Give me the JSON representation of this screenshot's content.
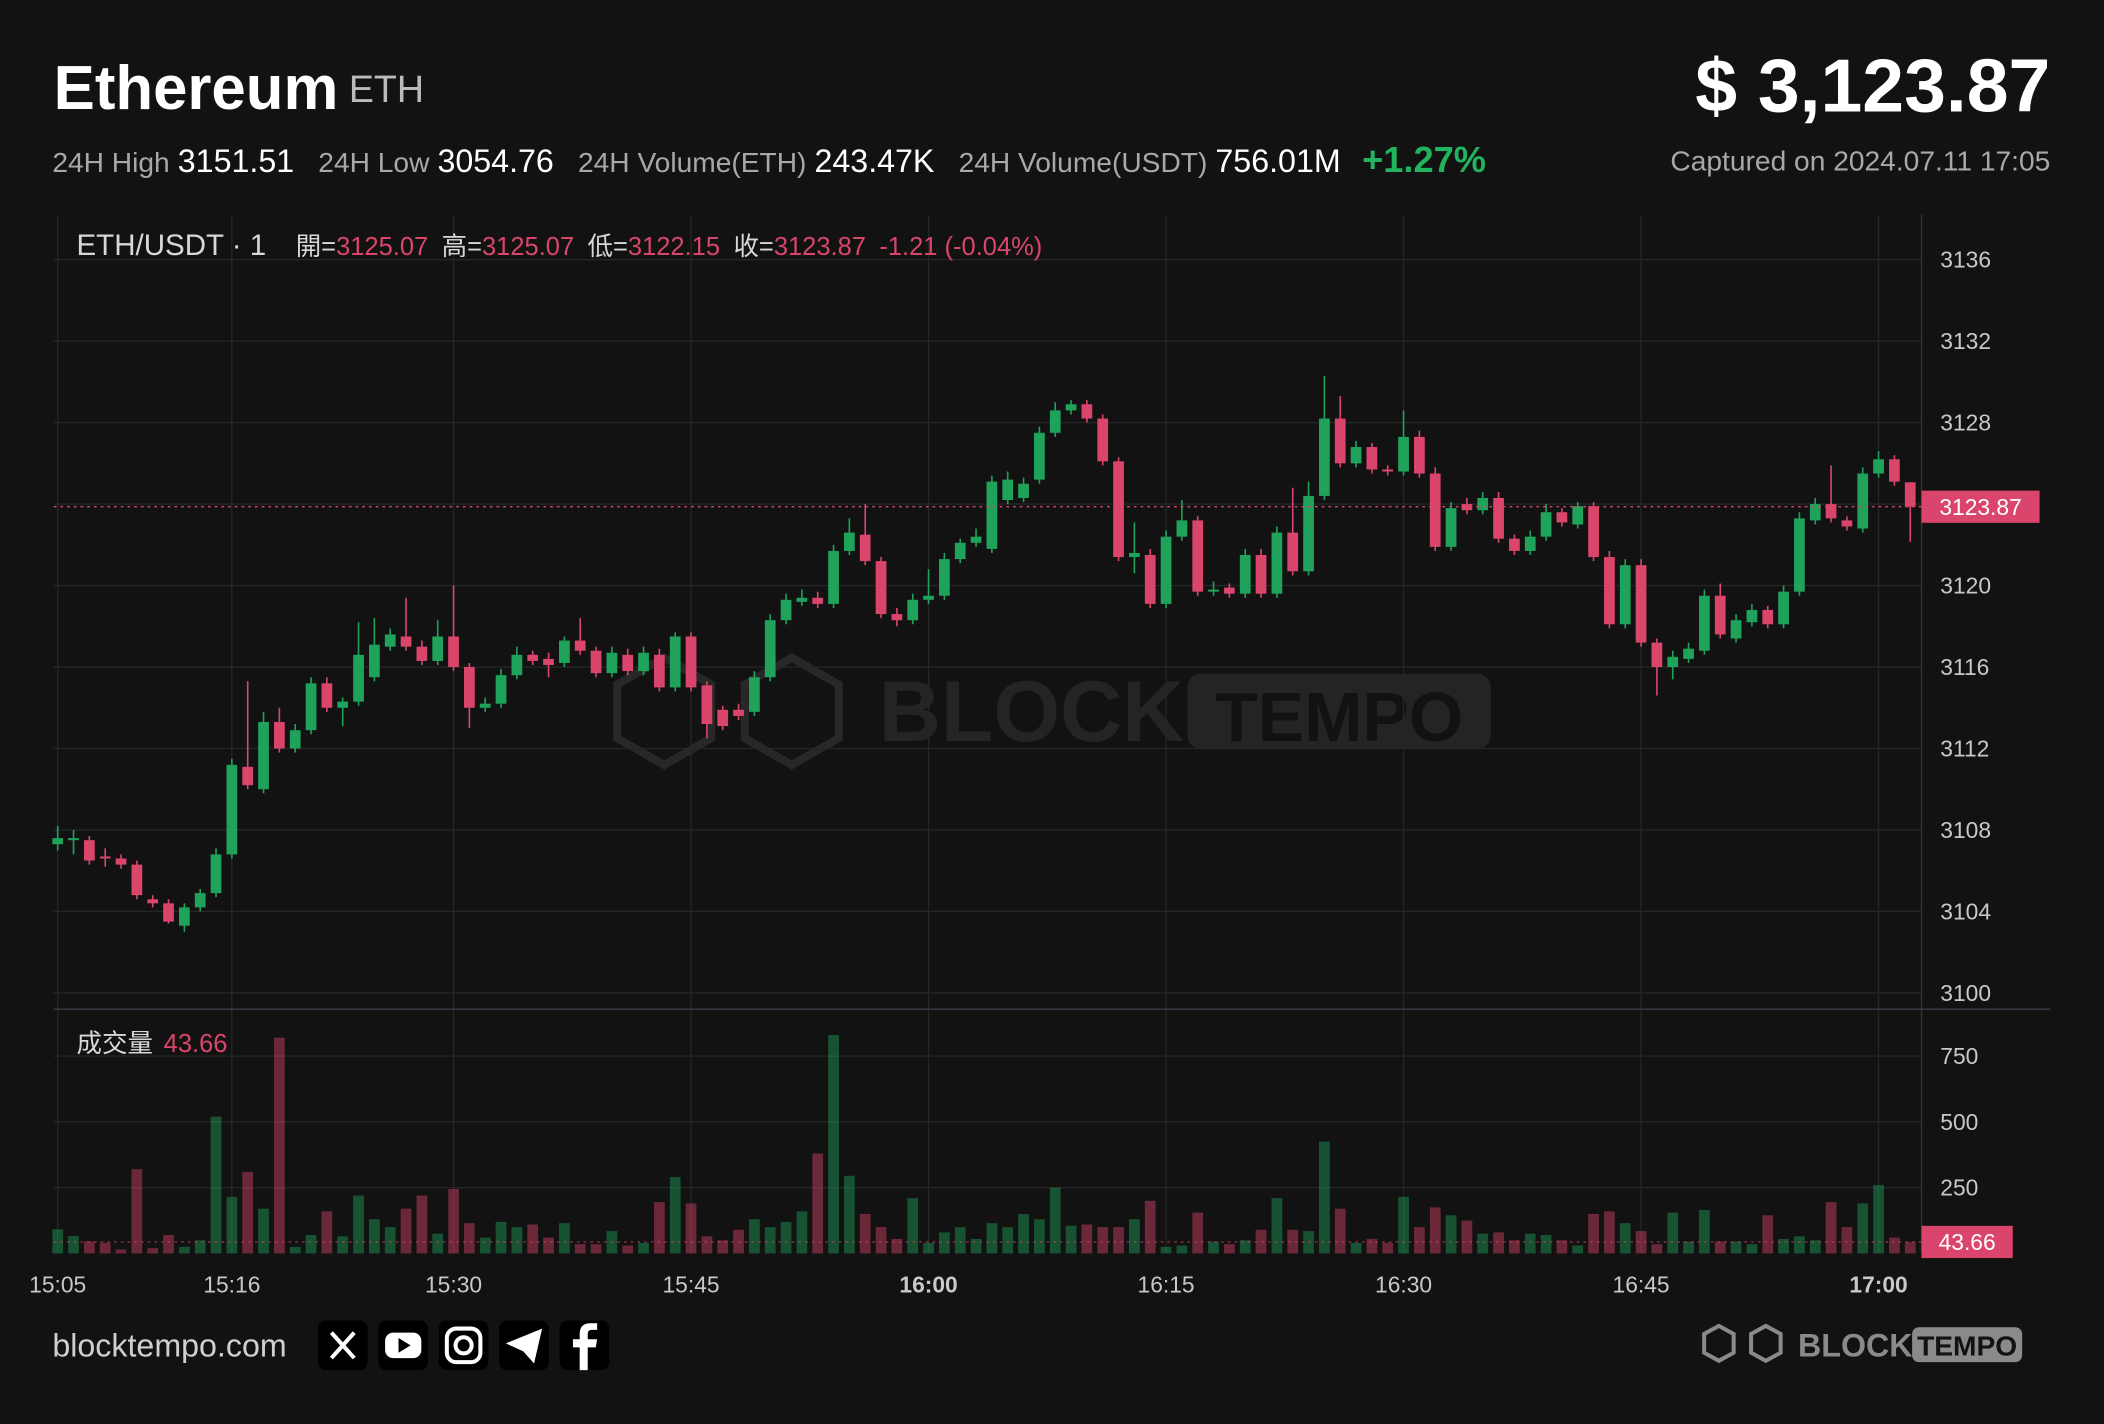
{
  "header": {
    "title": "Ethereum",
    "symbol": "ETH",
    "price": "$ 3,123.87",
    "stats": [
      {
        "label": "24H High",
        "value": "3151.51"
      },
      {
        "label": "24H Low",
        "value": "3054.76"
      },
      {
        "label": "24H Volume(ETH)",
        "value": "243.47K"
      },
      {
        "label": "24H Volume(USDT)",
        "value": "756.01M"
      }
    ],
    "change": "+1.27%",
    "captured": "Captured on 2024.07.11 17:05"
  },
  "chart_data": {
    "type": "candlestick",
    "legend_label": "ETH/USDT · 1",
    "ohlc_labels": [
      "開=",
      "高=",
      "低=",
      "收="
    ],
    "change_label": "-1.21 (-0.04%)",
    "up_color": "#1fa35a",
    "down_color": "#d9456b",
    "grid": true,
    "categories": [
      "15:05",
      "15:06",
      "15:07",
      "15:08",
      "15:09",
      "15:10",
      "15:11",
      "15:12",
      "15:13",
      "15:14",
      "15:15",
      "15:16",
      "15:17",
      "15:18",
      "15:19",
      "15:20",
      "15:21",
      "15:22",
      "15:23",
      "15:24",
      "15:25",
      "15:26",
      "15:27",
      "15:28",
      "15:29",
      "15:30",
      "15:31",
      "15:32",
      "15:33",
      "15:34",
      "15:35",
      "15:36",
      "15:37",
      "15:38",
      "15:39",
      "15:40",
      "15:41",
      "15:42",
      "15:43",
      "15:44",
      "15:45",
      "15:46",
      "15:47",
      "15:48",
      "15:49",
      "15:50",
      "15:51",
      "15:52",
      "15:53",
      "15:54",
      "15:55",
      "15:56",
      "15:57",
      "15:58",
      "15:59",
      "16:00",
      "16:01",
      "16:02",
      "16:03",
      "16:04",
      "16:05",
      "16:06",
      "16:07",
      "16:08",
      "16:09",
      "16:10",
      "16:11",
      "16:12",
      "16:13",
      "16:14",
      "16:15",
      "16:16",
      "16:17",
      "16:18",
      "16:19",
      "16:20",
      "16:21",
      "16:22",
      "16:23",
      "16:24",
      "16:25",
      "16:26",
      "16:27",
      "16:28",
      "16:29",
      "16:30",
      "16:31",
      "16:32",
      "16:33",
      "16:34",
      "16:35",
      "16:36",
      "16:37",
      "16:38",
      "16:39",
      "16:40",
      "16:41",
      "16:42",
      "16:43",
      "16:44",
      "16:45",
      "16:46",
      "16:47",
      "16:48",
      "16:49",
      "16:50",
      "16:51",
      "16:52",
      "16:53",
      "16:54",
      "16:55",
      "16:56",
      "16:57",
      "16:58",
      "16:59",
      "17:00",
      "17:01",
      "17:02"
    ],
    "xticks": [
      "15:05",
      "15:16",
      "15:30",
      "15:45",
      "16:00",
      "16:15",
      "16:30",
      "16:45",
      "17:00"
    ],
    "open": [
      3107.3,
      3107.5,
      3107.5,
      3106.7,
      3106.6,
      3106.3,
      3104.6,
      3104.4,
      3103.3,
      3104.2,
      3104.9,
      3106.8,
      3111.1,
      3110.0,
      3113.3,
      3112.0,
      3112.9,
      3115.2,
      3114.0,
      3114.3,
      3115.5,
      3117.0,
      3117.5,
      3117.0,
      3116.3,
      3117.5,
      3116.0,
      3114.0,
      3114.2,
      3115.6,
      3116.6,
      3116.4,
      3116.2,
      3117.3,
      3116.8,
      3115.7,
      3116.6,
      3115.8,
      3116.6,
      3115.0,
      3117.5,
      3115.1,
      3113.9,
      3113.9,
      3113.8,
      3115.5,
      3118.3,
      3119.2,
      3119.4,
      3119.1,
      3121.7,
      3122.5,
      3121.2,
      3118.6,
      3118.3,
      3119.3,
      3119.5,
      3121.3,
      3122.1,
      3121.8,
      3124.2,
      3124.3,
      3125.2,
      3127.5,
      3128.6,
      3128.9,
      3128.2,
      3126.1,
      3121.4,
      3121.5,
      3119.1,
      3122.4,
      3123.2,
      3119.7,
      3119.9,
      3119.6,
      3121.5,
      3119.6,
      3122.6,
      3120.7,
      3124.4,
      3128.2,
      3126.0,
      3126.8,
      3125.7,
      3125.6,
      3127.3,
      3125.5,
      3121.9,
      3124.0,
      3123.7,
      3124.3,
      3122.3,
      3121.7,
      3122.4,
      3123.6,
      3123.0,
      3123.9,
      3121.4,
      3118.1,
      3121.0,
      3117.2,
      3116.0,
      3116.4,
      3116.8,
      3119.5,
      3117.4,
      3118.2,
      3118.8,
      3118.1,
      3119.7,
      3123.2,
      3124.0,
      3123.2,
      3122.8,
      3125.5,
      3126.2,
      3125.07
    ],
    "high": [
      3108.2,
      3108.0,
      3107.7,
      3107.1,
      3106.8,
      3106.5,
      3104.8,
      3104.6,
      3104.4,
      3105.1,
      3107.1,
      3111.5,
      3115.3,
      3113.8,
      3114.0,
      3113.2,
      3115.5,
      3115.5,
      3114.5,
      3118.2,
      3118.4,
      3117.9,
      3119.4,
      3117.3,
      3118.3,
      3120.0,
      3116.2,
      3114.5,
      3115.9,
      3117.0,
      3116.8,
      3116.7,
      3117.5,
      3118.4,
      3117.0,
      3117.0,
      3116.9,
      3117.0,
      3116.9,
      3117.7,
      3117.7,
      3115.3,
      3114.1,
      3114.2,
      3115.8,
      3118.6,
      3119.6,
      3119.8,
      3119.7,
      3122.0,
      3123.3,
      3124.0,
      3121.4,
      3118.9,
      3119.6,
      3120.8,
      3121.6,
      3122.3,
      3122.8,
      3125.4,
      3125.6,
      3125.3,
      3127.8,
      3129.0,
      3129.1,
      3129.1,
      3128.4,
      3126.3,
      3123.1,
      3121.8,
      3122.7,
      3124.2,
      3123.4,
      3120.2,
      3120.1,
      3121.8,
      3121.8,
      3122.9,
      3124.8,
      3125.1,
      3130.3,
      3129.3,
      3127.1,
      3127.0,
      3125.9,
      3128.6,
      3127.6,
      3125.8,
      3124.1,
      3124.3,
      3124.6,
      3124.6,
      3122.5,
      3122.7,
      3124.0,
      3123.8,
      3124.1,
      3124.1,
      3121.7,
      3121.3,
      3121.3,
      3117.4,
      3116.8,
      3117.2,
      3119.8,
      3120.1,
      3118.6,
      3119.1,
      3119.0,
      3120.0,
      3123.6,
      3124.3,
      3125.9,
      3123.4,
      3125.8,
      3126.6,
      3126.4,
      3125.07
    ],
    "low": [
      3107.0,
      3106.8,
      3106.3,
      3106.2,
      3106.1,
      3104.6,
      3104.2,
      3103.4,
      3103.0,
      3104.0,
      3104.7,
      3106.6,
      3110.0,
      3109.8,
      3111.8,
      3111.8,
      3112.7,
      3113.8,
      3113.1,
      3114.1,
      3115.3,
      3116.8,
      3116.8,
      3116.1,
      3116.1,
      3115.8,
      3113.0,
      3113.8,
      3114.0,
      3115.4,
      3116.1,
      3115.5,
      3116.0,
      3116.6,
      3115.5,
      3115.5,
      3115.6,
      3115.6,
      3114.8,
      3114.8,
      3114.8,
      3112.5,
      3112.9,
      3113.4,
      3113.6,
      3115.3,
      3118.1,
      3119.0,
      3118.9,
      3118.9,
      3121.5,
      3121.0,
      3118.4,
      3118.0,
      3118.1,
      3119.1,
      3119.3,
      3121.1,
      3121.9,
      3121.6,
      3124.0,
      3124.1,
      3125.0,
      3127.3,
      3128.4,
      3128.0,
      3125.9,
      3121.2,
      3120.6,
      3118.9,
      3118.9,
      3122.2,
      3119.5,
      3119.5,
      3119.4,
      3119.4,
      3119.4,
      3119.4,
      3120.5,
      3120.5,
      3124.2,
      3125.8,
      3125.8,
      3125.5,
      3125.4,
      3125.4,
      3125.3,
      3121.7,
      3121.7,
      3123.5,
      3123.5,
      3122.1,
      3121.5,
      3121.5,
      3122.2,
      3122.9,
      3122.8,
      3121.2,
      3117.9,
      3117.9,
      3117.0,
      3114.6,
      3115.4,
      3116.2,
      3116.6,
      3117.4,
      3117.2,
      3118.0,
      3117.9,
      3117.9,
      3119.5,
      3123.0,
      3123.1,
      3122.7,
      3122.6,
      3125.3,
      3124.9,
      3122.15
    ],
    "close": [
      3107.6,
      3107.6,
      3106.5,
      3106.6,
      3106.3,
      3104.8,
      3104.4,
      3103.5,
      3104.2,
      3104.9,
      3106.8,
      3111.2,
      3110.2,
      3113.3,
      3112.0,
      3112.9,
      3115.2,
      3114.0,
      3114.3,
      3116.6,
      3117.1,
      3117.6,
      3117.0,
      3116.3,
      3117.5,
      3116.0,
      3114.0,
      3114.2,
      3115.6,
      3116.6,
      3116.3,
      3116.1,
      3117.3,
      3116.8,
      3115.7,
      3116.7,
      3115.8,
      3116.7,
      3115.0,
      3117.5,
      3115.0,
      3113.2,
      3113.1,
      3113.6,
      3115.5,
      3118.3,
      3119.3,
      3119.4,
      3119.1,
      3121.7,
      3122.6,
      3121.2,
      3118.6,
      3118.3,
      3119.3,
      3119.5,
      3121.3,
      3122.1,
      3122.4,
      3125.1,
      3125.2,
      3125.0,
      3127.5,
      3128.6,
      3128.9,
      3128.2,
      3126.1,
      3121.4,
      3121.6,
      3119.1,
      3122.4,
      3123.2,
      3119.7,
      3119.8,
      3119.6,
      3121.5,
      3119.6,
      3122.6,
      3120.7,
      3124.4,
      3128.2,
      3126.0,
      3126.8,
      3125.7,
      3125.6,
      3127.3,
      3125.5,
      3121.9,
      3123.8,
      3123.7,
      3124.3,
      3122.3,
      3121.7,
      3122.4,
      3123.6,
      3123.1,
      3123.9,
      3121.4,
      3118.1,
      3121.0,
      3117.2,
      3116.0,
      3116.5,
      3116.9,
      3119.5,
      3117.6,
      3118.3,
      3118.8,
      3118.1,
      3119.7,
      3123.3,
      3124.0,
      3123.3,
      3122.9,
      3125.5,
      3126.2,
      3125.1,
      3123.87
    ],
    "ylim": [
      3099.2,
      3138.2
    ],
    "yticks": [
      3100,
      3104,
      3108,
      3112,
      3116,
      3120,
      3124,
      3128,
      3132,
      3136
    ],
    "volume": {
      "label": "成交量",
      "values": [
        92,
        66,
        46,
        40,
        15,
        320,
        20,
        70,
        25,
        50,
        520,
        215,
        310,
        170,
        820,
        25,
        70,
        160,
        65,
        220,
        130,
        100,
        170,
        220,
        75,
        245,
        115,
        60,
        120,
        100,
        110,
        60,
        115,
        35,
        35,
        85,
        30,
        40,
        195,
        290,
        190,
        65,
        50,
        90,
        130,
        100,
        120,
        160,
        380,
        830,
        295,
        150,
        100,
        55,
        210,
        40,
        80,
        100,
        55,
        115,
        100,
        150,
        130,
        250,
        105,
        110,
        100,
        100,
        130,
        200,
        25,
        30,
        155,
        45,
        35,
        50,
        90,
        210,
        90,
        85,
        425,
        170,
        40,
        55,
        40,
        215,
        100,
        175,
        145,
        125,
        75,
        80,
        50,
        75,
        70,
        50,
        30,
        150,
        160,
        115,
        85,
        35,
        155,
        45,
        165,
        45,
        45,
        35,
        145,
        55,
        65,
        50,
        195,
        100,
        190,
        260,
        60,
        43.66
      ],
      "ylim": [
        0,
        913
      ],
      "yticks": [
        250,
        500,
        750
      ]
    }
  },
  "watermark": [
    "BLOCK",
    "TEMPO"
  ],
  "footer": {
    "site": "blocktempo.com",
    "logo": [
      "BLOCK",
      "TEMPO"
    ]
  }
}
